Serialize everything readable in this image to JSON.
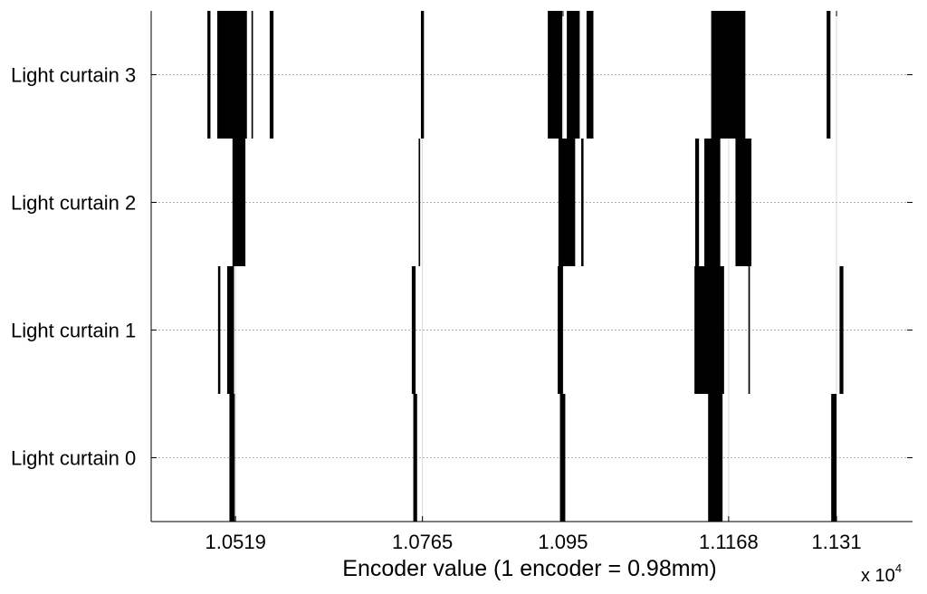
{
  "chart_data": {
    "type": "bar",
    "xlabel": "Encoder value (1 encoder = 0.98mm)",
    "x_multiplier": {
      "base": "x 10",
      "exponent": "4"
    },
    "x_ticks": [
      {
        "value": 10519,
        "label": "1.0519"
      },
      {
        "value": 10765,
        "label": "1.0765"
      },
      {
        "value": 10950,
        "label": "1.095"
      },
      {
        "value": 11168,
        "label": "1.1168"
      },
      {
        "value": 11310,
        "label": "1.131"
      }
    ],
    "xlim": [
      10408,
      11410
    ],
    "categories": [
      "Light curtain 0",
      "Light curtain 1",
      "Light curtain 2",
      "Light curtain 3"
    ],
    "grid": true,
    "series": [
      {
        "curtain": 0,
        "intervals": [
          [
            10511,
            10518
          ],
          [
            10753,
            10758
          ],
          [
            10946,
            10953
          ],
          [
            11141,
            11160
          ],
          [
            11303,
            11310
          ]
        ]
      },
      {
        "curtain": 1,
        "intervals": [
          [
            10496,
            10499
          ],
          [
            10508,
            10517
          ],
          [
            10751,
            10756
          ],
          [
            10943,
            10950
          ],
          [
            11123,
            11162
          ],
          [
            11194,
            11196
          ],
          [
            11314,
            11319
          ]
        ]
      },
      {
        "curtain": 2,
        "intervals": [
          [
            10515,
            10532
          ],
          [
            10760,
            10762
          ],
          [
            10944,
            10966
          ],
          [
            10974,
            10977
          ],
          [
            11124,
            11129
          ],
          [
            11136,
            11157
          ],
          [
            11177,
            11198
          ]
        ]
      },
      {
        "curtain": 3,
        "intervals": [
          [
            10482,
            10486
          ],
          [
            10495,
            10534
          ],
          [
            10540,
            10542
          ],
          [
            10564,
            10569
          ],
          [
            10763,
            10767
          ],
          [
            10930,
            10949
          ],
          [
            10955,
            10972
          ],
          [
            10981,
            10990
          ],
          [
            11145,
            11190
          ],
          [
            11297,
            11302
          ]
        ]
      }
    ]
  }
}
